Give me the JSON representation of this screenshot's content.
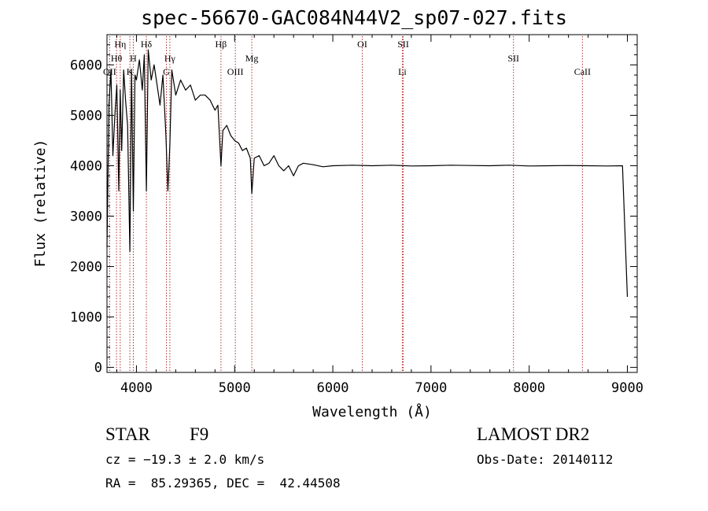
{
  "title": "spec-56670-GAC084N44V2_sp07-027.fits",
  "info": {
    "class_label": "STAR",
    "subclass_label": "F9",
    "cz_text": "cz = −19.3 ± 2.0 km/s",
    "coords_text": "RA =  85.29365, DEC =  42.44508",
    "survey_label": "LAMOST DR2",
    "obs_date_text": "Obs-Date: 20140112"
  },
  "chart_data": {
    "type": "line",
    "title": "spec-56670-GAC084N44V2_sp07-027.fits",
    "xlabel": "Wavelength (Å)",
    "ylabel": "Flux (relative)",
    "xlim": [
      3700,
      9100
    ],
    "ylim": [
      -100,
      6600
    ],
    "xticks": [
      4000,
      5000,
      6000,
      7000,
      8000,
      9000
    ],
    "yticks": [
      0,
      1000,
      2000,
      3000,
      4000,
      5000,
      6000
    ],
    "grid": false,
    "line_color": "#000000",
    "marker_color": "#b03030",
    "series": [
      {
        "x": [
          3700,
          3720,
          3740,
          3760,
          3780,
          3800,
          3820,
          3835,
          3850,
          3870,
          3889,
          3910,
          3933,
          3950,
          3968,
          3985,
          4000,
          4030,
          4060,
          4080,
          4101,
          4120,
          4150,
          4180,
          4210,
          4240,
          4270,
          4300,
          4320,
          4340,
          4360,
          4400,
          4450,
          4500,
          4550,
          4600,
          4650,
          4700,
          4750,
          4800,
          4830,
          4861,
          4880,
          4920,
          4960,
          5000,
          5040,
          5080,
          5120,
          5160,
          5175,
          5200,
          5250,
          5300,
          5350,
          5400,
          5450,
          5500,
          5550,
          5600,
          5650,
          5700,
          5800,
          5900,
          6000,
          6200,
          6400,
          6600,
          6800,
          7000,
          7200,
          7400,
          7600,
          7800,
          8000,
          8200,
          8400,
          8600,
          8800,
          8950,
          9000
        ],
        "y": [
          2400,
          5200,
          5900,
          4200,
          5000,
          5600,
          3500,
          5500,
          4300,
          5900,
          5300,
          4800,
          2300,
          5900,
          3100,
          5800,
          5700,
          6100,
          5500,
          6200,
          3500,
          6300,
          5700,
          6000,
          5600,
          5200,
          5800,
          4600,
          3500,
          4400,
          5900,
          5400,
          5700,
          5500,
          5600,
          5300,
          5400,
          5400,
          5300,
          5100,
          5200,
          4000,
          4700,
          4800,
          4600,
          4500,
          4450,
          4300,
          4350,
          4150,
          3450,
          4150,
          4200,
          4000,
          4050,
          4200,
          4000,
          3900,
          4000,
          3800,
          4000,
          4050,
          4020,
          3980,
          4000,
          4010,
          4000,
          4010,
          3995,
          4000,
          4010,
          4005,
          4000,
          4010,
          3995,
          4000,
          4005,
          4000,
          3995,
          4000,
          1400
        ]
      }
    ],
    "lines": [
      {
        "label": "OII",
        "wavelength": 3727,
        "row": 3
      },
      {
        "label": "Hη",
        "wavelength": 3835,
        "row": 0
      },
      {
        "label": "Hθ",
        "wavelength": 3797,
        "row": 1
      },
      {
        "label": "H",
        "wavelength": 3968,
        "row": 1
      },
      {
        "label": "K",
        "wavelength": 3933,
        "row": 3
      },
      {
        "label": "Hδ",
        "wavelength": 4101,
        "row": 0
      },
      {
        "label": "Hγ",
        "wavelength": 4340,
        "row": 1
      },
      {
        "label": "G",
        "wavelength": 4305,
        "row": 3
      },
      {
        "label": "Hβ",
        "wavelength": 4861,
        "row": 0
      },
      {
        "label": "OIII",
        "wavelength": 5007,
        "row": 3
      },
      {
        "label": "Mg",
        "wavelength": 5175,
        "row": 1
      },
      {
        "label": "OI",
        "wavelength": 6300,
        "row": 0
      },
      {
        "label": "SII",
        "wavelength": 6717,
        "row": 0
      },
      {
        "label": "Li",
        "wavelength": 6708,
        "row": 3
      },
      {
        "label": "SII",
        "wavelength": 7840,
        "row": 1
      },
      {
        "label": "CaII",
        "wavelength": 8542,
        "row": 3
      }
    ]
  }
}
